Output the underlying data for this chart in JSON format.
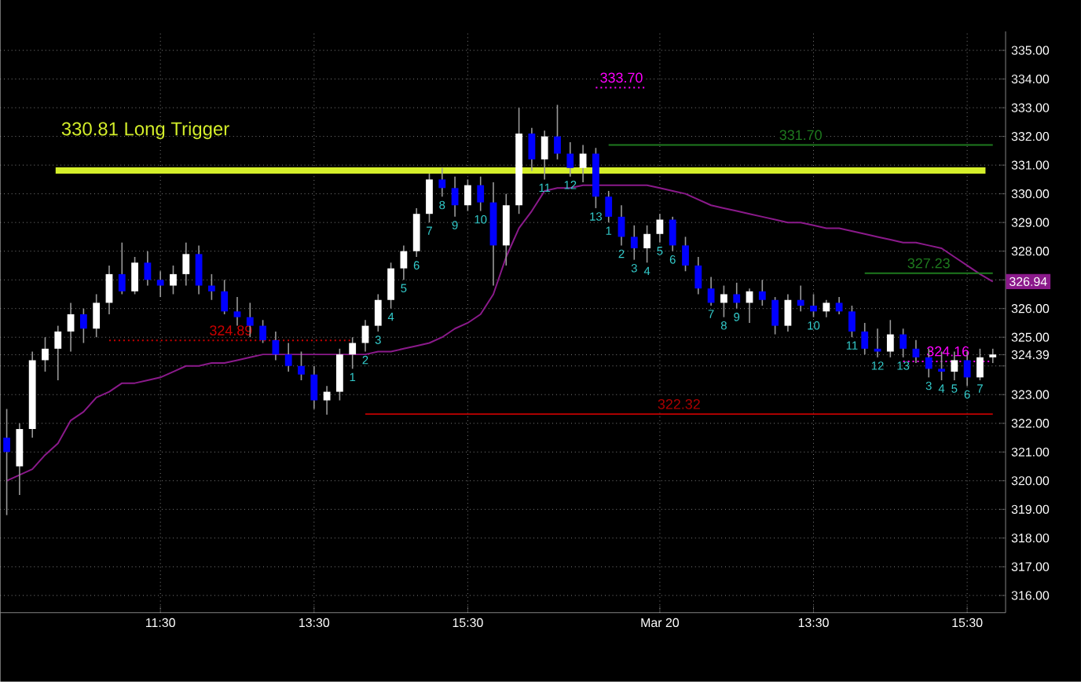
{
  "chart_data": {
    "type": "candlestick",
    "categories": [
      null,
      null,
      null,
      null,
      null,
      null,
      null,
      null,
      null,
      null,
      null,
      null,
      "11:30",
      null,
      null,
      null,
      null,
      null,
      null,
      null,
      null,
      null,
      null,
      null,
      "13:30",
      null,
      null,
      null,
      null,
      null,
      null,
      null,
      null,
      null,
      null,
      null,
      "15:30",
      null,
      null,
      null,
      null,
      null,
      null,
      null,
      null,
      null,
      null,
      null,
      null,
      null,
      null,
      "Mar 20",
      null,
      null,
      null,
      null,
      null,
      null,
      null,
      null,
      null,
      null,
      null,
      "13:30",
      null,
      null,
      null,
      null,
      null,
      null,
      null,
      null,
      null,
      null,
      null,
      "15:30",
      null,
      null
    ],
    "ohlc": [
      [
        321.5,
        322.5,
        318.8,
        321
      ],
      [
        320.5,
        322,
        319.5,
        321.8
      ],
      [
        321.8,
        324.5,
        321.5,
        324.2
      ],
      [
        324.2,
        325,
        323.8,
        324.6
      ],
      [
        324.6,
        325.4,
        323.5,
        325.2
      ],
      [
        325.2,
        326.2,
        324.5,
        325.8
      ],
      [
        325.8,
        326,
        324.8,
        325.3
      ],
      [
        325.3,
        326.5,
        325,
        326.2
      ],
      [
        326.2,
        327.5,
        325.8,
        327.2
      ],
      [
        327.2,
        328.3,
        326.5,
        326.6
      ],
      [
        326.6,
        327.8,
        326.5,
        327.6
      ],
      [
        327.6,
        328,
        326.8,
        327
      ],
      [
        327,
        327.3,
        326.4,
        326.8
      ],
      [
        326.8,
        327.5,
        326.5,
        327.2
      ],
      [
        327.2,
        328.3,
        326.8,
        327.9
      ],
      [
        327.9,
        328.2,
        326.5,
        326.8
      ],
      [
        326.8,
        327.2,
        326.3,
        326.6
      ],
      [
        326.6,
        327,
        325.8,
        325.9
      ],
      [
        325.9,
        326.4,
        325.4,
        325.7
      ],
      [
        325.7,
        326.2,
        325,
        325.4
      ],
      [
        325.4,
        325.6,
        324.8,
        324.9
      ],
      [
        324.9,
        325.2,
        324.2,
        324.4
      ],
      [
        324.4,
        324.8,
        323.8,
        324
      ],
      [
        324,
        324.5,
        323.5,
        323.7
      ],
      [
        323.7,
        324,
        322.5,
        322.8
      ],
      [
        322.8,
        323.3,
        322.3,
        323.1
      ],
      [
        323.1,
        324.6,
        322.8,
        324.4
      ],
      [
        324.4,
        325,
        323.9,
        324.8
      ],
      [
        324.8,
        325.6,
        324.5,
        325.4
      ],
      [
        325.4,
        326.5,
        325.2,
        326.3
      ],
      [
        326.3,
        327.6,
        326,
        327.4
      ],
      [
        327.4,
        328.2,
        327,
        328
      ],
      [
        328,
        329.5,
        327.8,
        329.3
      ],
      [
        329.3,
        330.7,
        329,
        330.5
      ],
      [
        330.5,
        330.9,
        329.9,
        330.2
      ],
      [
        330.2,
        330.6,
        329.2,
        329.6
      ],
      [
        329.6,
        330.5,
        329.4,
        330.3
      ],
      [
        330.3,
        330.6,
        329.4,
        329.7
      ],
      [
        329.7,
        330.4,
        326.8,
        328.2
      ],
      [
        328.2,
        330,
        327.5,
        329.6
      ],
      [
        329.6,
        333,
        329.3,
        332.1
      ],
      [
        332.1,
        332.3,
        330.8,
        331.2
      ],
      [
        331.2,
        332.2,
        330.5,
        332
      ],
      [
        332,
        333.1,
        331.2,
        331.4
      ],
      [
        331.4,
        331.8,
        330.6,
        330.9
      ],
      [
        330.9,
        331.7,
        330.4,
        331.4
      ],
      [
        331.4,
        331.6,
        329.5,
        329.9
      ],
      [
        329.9,
        330.1,
        329,
        329.2
      ],
      [
        329.2,
        329.6,
        328.2,
        328.5
      ],
      [
        328.5,
        328.9,
        327.7,
        328.1
      ],
      [
        328.1,
        328.9,
        327.6,
        328.6
      ],
      [
        328.6,
        329.3,
        328.3,
        329.1
      ],
      [
        329.1,
        329.2,
        328,
        328.2
      ],
      [
        328.2,
        328.5,
        327.3,
        327.5
      ],
      [
        327.5,
        327.8,
        326.5,
        326.7
      ],
      [
        326.7,
        327.1,
        326.1,
        326.2
      ],
      [
        326.2,
        326.8,
        325.7,
        326.5
      ],
      [
        326.5,
        326.9,
        326,
        326.2
      ],
      [
        326.2,
        326.7,
        325.5,
        326.6
      ],
      [
        326.6,
        327,
        326.1,
        326.3
      ],
      [
        326.3,
        326.4,
        325.1,
        325.4
      ],
      [
        325.4,
        326.5,
        325.2,
        326.3
      ],
      [
        326.3,
        326.8,
        325.9,
        326.1
      ],
      [
        326.1,
        326.5,
        325.7,
        325.9
      ],
      [
        325.9,
        326.3,
        325.7,
        326.2
      ],
      [
        326.2,
        326.4,
        325.8,
        325.9
      ],
      [
        325.9,
        326.1,
        325,
        325.2
      ],
      [
        325.2,
        325.5,
        324.4,
        324.6
      ],
      [
        324.6,
        325.3,
        324.3,
        324.5
      ],
      [
        324.5,
        325.6,
        324.3,
        325.1
      ],
      [
        325.1,
        325.3,
        324.3,
        324.6
      ],
      [
        324.6,
        324.9,
        324.1,
        324.3
      ],
      [
        324.3,
        324.6,
        323.6,
        323.9
      ],
      [
        323.9,
        324.5,
        323.5,
        323.8
      ],
      [
        323.8,
        324.5,
        323.5,
        324.2
      ],
      [
        324.2,
        324.5,
        323.3,
        323.6
      ],
      [
        323.6,
        324.6,
        323.5,
        324.3
      ],
      [
        324.3,
        324.6,
        324.1,
        324.4
      ]
    ],
    "value_labels": [
      null,
      null,
      null,
      null,
      null,
      null,
      null,
      null,
      null,
      null,
      null,
      null,
      null,
      null,
      null,
      null,
      null,
      null,
      null,
      null,
      null,
      null,
      null,
      null,
      null,
      null,
      null,
      "1",
      "2",
      "3",
      "4",
      "5",
      "6",
      "7",
      "8",
      "9",
      null,
      "10",
      null,
      null,
      null,
      null,
      "11",
      null,
      "12",
      null,
      "13",
      "1",
      "2",
      "3",
      "4",
      "5",
      "6",
      null,
      null,
      "7",
      "8",
      "9",
      null,
      null,
      null,
      null,
      null,
      "10",
      null,
      null,
      "11",
      null,
      "12",
      null,
      "13",
      null,
      "3",
      "4",
      "5",
      "6",
      "7",
      null
    ],
    "series": [
      {
        "type": "line",
        "color": "#8b1a8b",
        "values": [
          320.0,
          320.2,
          320.4,
          320.9,
          321.3,
          322.1,
          322.4,
          322.9,
          323.1,
          323.4,
          323.4,
          323.5,
          323.6,
          323.8,
          324.0,
          324.0,
          324.1,
          324.1,
          324.2,
          324.3,
          324.4,
          324.4,
          324.4,
          324.4,
          324.4,
          324.4,
          324.4,
          324.4,
          324.4,
          324.5,
          324.5,
          324.6,
          324.7,
          324.8,
          325.0,
          325.3,
          325.5,
          325.8,
          326.5,
          327.8,
          328.8,
          329.4,
          330.1,
          330.2,
          330.2,
          330.3,
          330.3,
          330.3,
          330.3,
          330.3,
          330.3,
          330.2,
          330.1,
          330.0,
          329.8,
          329.6,
          329.5,
          329.4,
          329.3,
          329.2,
          329.1,
          329.0,
          329.0,
          328.9,
          328.8,
          328.8,
          328.7,
          328.6,
          328.5,
          328.4,
          328.3,
          328.3,
          328.2,
          328.1,
          327.8,
          327.5,
          327.2,
          326.94
        ],
        "value_labels": [
          null,
          null,
          null,
          null,
          null,
          null,
          null,
          null,
          null,
          null,
          null,
          null,
          null,
          null,
          null,
          null,
          null,
          null,
          null,
          null,
          null,
          null,
          null,
          null,
          null,
          null,
          null,
          null,
          null,
          null,
          null,
          null,
          null,
          null,
          null,
          null,
          null,
          null,
          null,
          null,
          null,
          null,
          null,
          null,
          null,
          null,
          null,
          null,
          null,
          null,
          null,
          null,
          null,
          null,
          null,
          null,
          null,
          null,
          null,
          null,
          null,
          null,
          null,
          null,
          null,
          null,
          null,
          null,
          null,
          null,
          null,
          null,
          null,
          null,
          null,
          null,
          null,
          "326.94"
        ]
      },
      {
        "type": "line",
        "name": "333.70",
        "color": "#ff00ff",
        "line_style": "dotted",
        "values": [
          null,
          null,
          null,
          null,
          null,
          null,
          null,
          null,
          null,
          null,
          null,
          null,
          null,
          null,
          null,
          null,
          null,
          null,
          null,
          null,
          null,
          null,
          null,
          null,
          null,
          null,
          null,
          null,
          null,
          null,
          null,
          null,
          null,
          null,
          null,
          null,
          null,
          null,
          null,
          null,
          null,
          null,
          null,
          null,
          null,
          null,
          333.7,
          333.7,
          333.7,
          333.7,
          333.7,
          null,
          null,
          null,
          null,
          null,
          null,
          null,
          null,
          null,
          null,
          null,
          null,
          null,
          null,
          null,
          null,
          null,
          null,
          null,
          null,
          null,
          null,
          null,
          null,
          null,
          null,
          null
        ]
      },
      {
        "type": "line",
        "name": "331.70",
        "color": "#1e7a1e",
        "values": [
          null,
          null,
          null,
          null,
          null,
          null,
          null,
          null,
          null,
          null,
          null,
          null,
          null,
          null,
          null,
          null,
          null,
          null,
          null,
          null,
          null,
          null,
          null,
          null,
          null,
          null,
          null,
          null,
          null,
          null,
          null,
          null,
          null,
          null,
          null,
          null,
          null,
          null,
          null,
          null,
          null,
          null,
          null,
          null,
          null,
          null,
          null,
          331.7,
          331.7,
          331.7,
          331.7,
          331.7,
          331.7,
          331.7,
          331.7,
          331.7,
          331.7,
          331.7,
          331.7,
          331.7,
          331.7,
          331.7,
          331.7,
          331.7,
          331.7,
          331.7,
          331.7,
          331.7,
          331.7,
          331.7,
          331.7,
          331.7,
          331.7,
          331.7,
          331.7,
          331.7,
          331.7,
          331.7
        ]
      },
      {
        "type": "line",
        "name": "327.23",
        "color": "#1e7a1e",
        "values": [
          null,
          null,
          null,
          null,
          null,
          null,
          null,
          null,
          null,
          null,
          null,
          null,
          null,
          null,
          null,
          null,
          null,
          null,
          null,
          null,
          null,
          null,
          null,
          null,
          null,
          null,
          null,
          null,
          null,
          null,
          null,
          null,
          null,
          null,
          null,
          null,
          null,
          null,
          null,
          null,
          null,
          null,
          null,
          null,
          null,
          null,
          null,
          null,
          null,
          null,
          null,
          null,
          null,
          null,
          null,
          null,
          null,
          null,
          null,
          null,
          null,
          null,
          null,
          null,
          null,
          null,
          null,
          327.23,
          327.23,
          327.23,
          327.23,
          327.23,
          327.23,
          327.23,
          327.23,
          327.23,
          327.23,
          327.23
        ]
      },
      {
        "type": "line",
        "name": "324.89",
        "color": "#cc0000",
        "line_style": "dotted",
        "values": [
          null,
          null,
          null,
          null,
          null,
          null,
          null,
          null,
          324.89,
          324.89,
          324.89,
          324.89,
          324.89,
          324.89,
          324.89,
          324.89,
          324.89,
          324.89,
          324.89,
          324.89,
          324.89,
          324.89,
          324.89,
          324.89,
          324.89,
          324.89,
          324.89,
          324.89,
          null,
          null,
          null,
          null,
          null,
          null,
          null,
          null,
          null,
          null,
          null,
          null,
          null,
          null,
          null,
          null,
          null,
          null,
          null,
          null,
          null,
          null,
          null,
          null,
          null,
          null,
          null,
          null,
          null,
          null,
          null,
          null,
          null,
          null,
          null,
          null,
          null,
          null,
          null,
          null,
          null,
          null,
          null,
          null,
          null,
          null,
          null,
          null,
          null,
          null
        ]
      },
      {
        "type": "line",
        "name": "322.32",
        "color": "#aa0000",
        "values": [
          null,
          null,
          null,
          null,
          null,
          null,
          null,
          null,
          null,
          null,
          null,
          null,
          null,
          null,
          null,
          null,
          null,
          null,
          null,
          null,
          null,
          null,
          null,
          null,
          null,
          null,
          null,
          null,
          322.32,
          322.32,
          322.32,
          322.32,
          322.32,
          322.32,
          322.32,
          322.32,
          322.32,
          322.32,
          322.32,
          322.32,
          322.32,
          322.32,
          322.32,
          322.32,
          322.32,
          322.32,
          322.32,
          322.32,
          322.32,
          322.32,
          322.32,
          322.32,
          322.32,
          322.32,
          322.32,
          322.32,
          322.32,
          322.32,
          322.32,
          322.32,
          322.32,
          322.32,
          322.32,
          322.32,
          322.32,
          322.32,
          322.32,
          322.32,
          322.32,
          322.32,
          322.32,
          322.32,
          322.32,
          322.32,
          322.32,
          322.32,
          322.32,
          322.32
        ]
      },
      {
        "type": "line",
        "name": "324.16",
        "color": "#ff00ff",
        "line_style": "dotted",
        "values": [
          null,
          null,
          null,
          null,
          null,
          null,
          null,
          null,
          null,
          null,
          null,
          null,
          null,
          null,
          null,
          null,
          null,
          null,
          null,
          null,
          null,
          null,
          null,
          null,
          null,
          null,
          null,
          null,
          null,
          null,
          null,
          null,
          null,
          null,
          null,
          null,
          null,
          null,
          null,
          null,
          null,
          null,
          null,
          null,
          null,
          null,
          null,
          null,
          null,
          null,
          null,
          null,
          null,
          null,
          null,
          null,
          null,
          null,
          null,
          null,
          null,
          null,
          null,
          null,
          null,
          null,
          null,
          null,
          null,
          null,
          324.16,
          324.16,
          324.16,
          324.16,
          324.16,
          324.16,
          324.16,
          324.16
        ]
      }
    ],
    "ref_lines": [
      {
        "axis": "y",
        "value": 330.81,
        "label": "330.81 Long Trigger",
        "color": "#d4ee2a"
      }
    ],
    "ylim": [
      315.4,
      335.66
    ],
    "yticks": [
      {
        "value": 316,
        "label": "316.00"
      },
      {
        "value": 317,
        "label": "317.00"
      },
      {
        "value": 318,
        "label": "318.00"
      },
      {
        "value": 319,
        "label": "319.00"
      },
      {
        "value": 320,
        "label": "320.00"
      },
      {
        "value": 321,
        "label": "321.00"
      },
      {
        "value": 322,
        "label": "322.00"
      },
      {
        "value": 323,
        "label": "323.00"
      },
      {
        "value": 324,
        "label": null
      },
      {
        "value": 324.39,
        "label": "324.39"
      },
      {
        "value": 325,
        "label": "325.00"
      },
      {
        "value": 326,
        "label": "326.00"
      },
      {
        "value": 327,
        "label": null
      },
      {
        "value": 328,
        "label": "328.00"
      },
      {
        "value": 329,
        "label": "329.00"
      },
      {
        "value": 330,
        "label": "330.00"
      },
      {
        "value": 331,
        "label": "331.00"
      },
      {
        "value": 332,
        "label": "332.00"
      },
      {
        "value": 333,
        "label": "333.00"
      },
      {
        "value": 334,
        "label": "334.00"
      },
      {
        "value": 335,
        "label": "335.00"
      }
    ],
    "grid": true,
    "marker": "none"
  }
}
